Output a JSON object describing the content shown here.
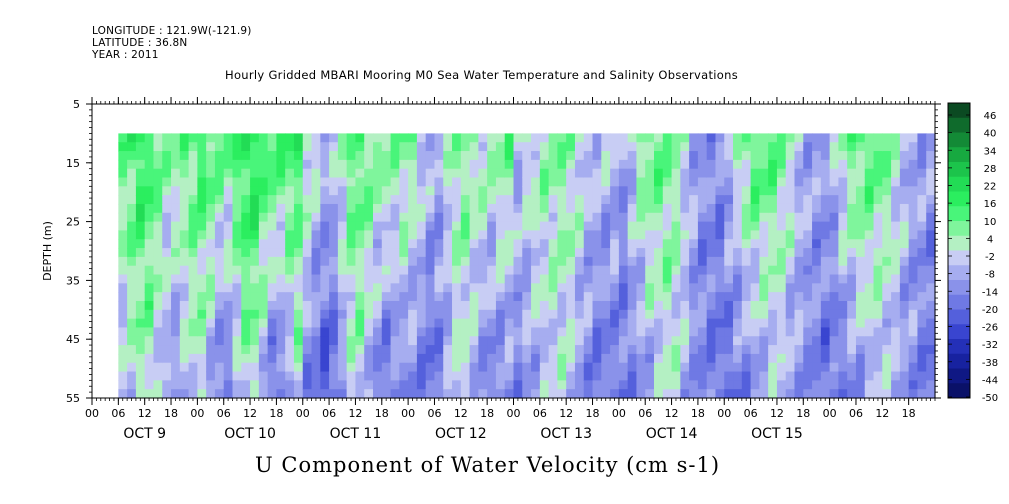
{
  "header": {
    "longitude": "LONGITUDE : 121.9W(-121.9)",
    "latitude": "LATITUDE : 36.8N",
    "year": "YEAR : 2011",
    "title": "Hourly Gridded MBARI Mooring M0 Sea Water Temperature and Salinity Observations"
  },
  "chart_data": {
    "type": "heatmap",
    "title": "Hourly Gridded MBARI Mooring M0 Sea Water Temperature and Salinity Observations",
    "variable": "U Component of Water Velocity (cm s-1)",
    "xlabel": "",
    "ylabel": "DEPTH (m)",
    "ylim": [
      5,
      55
    ],
    "y_inverted": true,
    "y_ticks": [
      "5",
      "15",
      "25",
      "35",
      "45",
      "55"
    ],
    "data_depth_range": [
      10,
      55
    ],
    "x_hour_ticks": [
      "00",
      "06",
      "12",
      "18",
      "00",
      "06",
      "12",
      "18",
      "00",
      "06",
      "12",
      "18",
      "00",
      "06",
      "12",
      "18",
      "00",
      "06",
      "12",
      "18",
      "00",
      "06",
      "12",
      "18",
      "00",
      "06",
      "12",
      "18",
      "00",
      "06",
      "12",
      "18"
    ],
    "x_day_labels": [
      "OCT  9",
      "OCT 10",
      "OCT 11",
      "OCT 12",
      "OCT 13",
      "OCT 14",
      "OCT 15"
    ],
    "data_start": "OCT 9 06",
    "colorbar": {
      "ticks": [
        "46",
        "40",
        "34",
        "28",
        "22",
        "16",
        "10",
        "4",
        "-2",
        "-8",
        "-14",
        "-20",
        "-26",
        "-32",
        "-38",
        "-44",
        "-50"
      ],
      "colors": [
        "#0b4a22",
        "#0f6b2c",
        "#138a36",
        "#17a940",
        "#1cc44b",
        "#22dc55",
        "#2bee5f",
        "#49f57a",
        "#7ff59c",
        "#b4f0c3",
        "#c8cdf4",
        "#a6adf0",
        "#8a92ea",
        "#6f79e4",
        "#5460dc",
        "#3945d0",
        "#2430b8",
        "#1722a0",
        "#0f1884",
        "#0a1168"
      ],
      "low": -50,
      "high": 52
    },
    "series": [
      {
        "name": "Oct 9",
        "approx_u_shallow": [
          15,
          10,
          20,
          5
        ],
        "approx_u_deep": [
          2,
          -10,
          6,
          -14
        ]
      },
      {
        "name": "Oct 10",
        "approx_u_shallow": [
          18,
          10,
          22,
          15
        ],
        "approx_u_deep": [
          4,
          -22,
          8,
          -24
        ]
      },
      {
        "name": "Oct 11",
        "approx_u_shallow": [
          10,
          -6,
          16,
          8
        ],
        "approx_u_deep": [
          -12,
          -26,
          4,
          -20
        ]
      },
      {
        "name": "Oct 12",
        "approx_u_shallow": [
          12,
          -8,
          10,
          4
        ],
        "approx_u_deep": [
          -14,
          -20,
          2,
          -16
        ]
      },
      {
        "name": "Oct 13",
        "approx_u_shallow": [
          -4,
          6,
          8,
          -2
        ],
        "approx_u_deep": [
          -16,
          -6,
          0,
          -18
        ]
      },
      {
        "name": "Oct 14",
        "approx_u_shallow": [
          -14,
          14,
          10,
          -10
        ],
        "approx_u_deep": [
          -18,
          -12,
          2,
          -14
        ]
      },
      {
        "name": "Oct 15",
        "approx_u_shallow": [
          -8,
          16,
          12,
          -6
        ],
        "approx_u_deep": [
          -20,
          -14,
          -4,
          -12
        ]
      }
    ]
  }
}
